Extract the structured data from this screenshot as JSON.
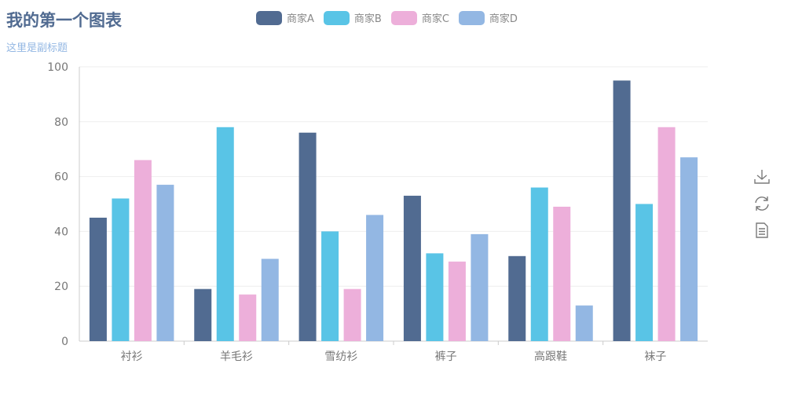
{
  "title": "我的第一个图表",
  "subtitle": "这里是副标题",
  "colors": [
    "#516b91",
    "#59c4e6",
    "#edafda",
    "#93b7e3"
  ],
  "toolbox": [
    "download-icon",
    "refresh-icon",
    "data-view-icon"
  ],
  "chart_data": {
    "type": "bar",
    "categories": [
      "衬衫",
      "羊毛衫",
      "雪纺衫",
      "裤子",
      "高跟鞋",
      "袜子"
    ],
    "series": [
      {
        "name": "商家A",
        "values": [
          45,
          19,
          76,
          53,
          31,
          95
        ]
      },
      {
        "name": "商家B",
        "values": [
          52,
          78,
          40,
          32,
          56,
          50
        ]
      },
      {
        "name": "商家C",
        "values": [
          66,
          17,
          19,
          29,
          49,
          78
        ]
      },
      {
        "name": "商家D",
        "values": [
          57,
          30,
          46,
          39,
          13,
          67
        ]
      }
    ],
    "ylim": [
      0,
      100
    ],
    "yticks": [
      0,
      20,
      40,
      60,
      80,
      100
    ],
    "grid": true,
    "legend": "top"
  }
}
